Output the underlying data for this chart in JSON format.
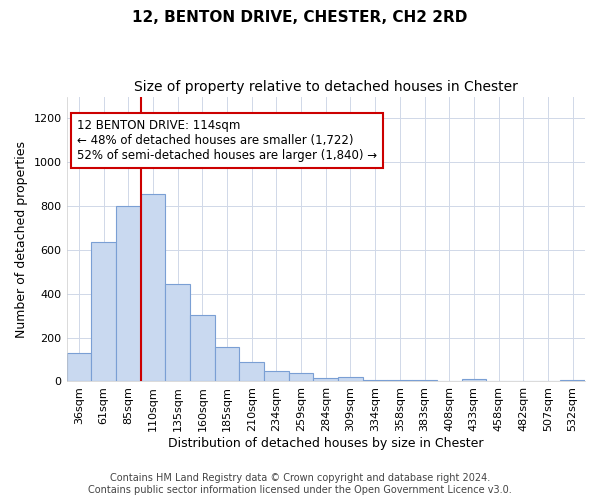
{
  "title_line1": "12, BENTON DRIVE, CHESTER, CH2 2RD",
  "title_line2": "Size of property relative to detached houses in Chester",
  "xlabel": "Distribution of detached houses by size in Chester",
  "ylabel": "Number of detached properties",
  "categories": [
    "36sqm",
    "61sqm",
    "85sqm",
    "110sqm",
    "135sqm",
    "160sqm",
    "185sqm",
    "210sqm",
    "234sqm",
    "259sqm",
    "284sqm",
    "309sqm",
    "334sqm",
    "358sqm",
    "383sqm",
    "408sqm",
    "433sqm",
    "458sqm",
    "482sqm",
    "507sqm",
    "532sqm"
  ],
  "values": [
    130,
    635,
    800,
    855,
    445,
    305,
    155,
    90,
    50,
    38,
    15,
    20,
    5,
    5,
    5,
    0,
    10,
    0,
    0,
    0,
    5
  ],
  "bar_color": "#c9d9f0",
  "bar_edge_color": "#7a9fd4",
  "vline_color": "#cc0000",
  "annotation_text": "12 BENTON DRIVE: 114sqm\n← 48% of detached houses are smaller (1,722)\n52% of semi-detached houses are larger (1,840) →",
  "annotation_box_color": "white",
  "annotation_box_edge": "#cc0000",
  "ylim": [
    0,
    1300
  ],
  "yticks": [
    0,
    200,
    400,
    600,
    800,
    1000,
    1200
  ],
  "grid_color": "#d0d8e8",
  "footnote": "Contains HM Land Registry data © Crown copyright and database right 2024.\nContains public sector information licensed under the Open Government Licence v3.0.",
  "title_fontsize": 11,
  "subtitle_fontsize": 10,
  "tick_fontsize": 8,
  "label_fontsize": 9,
  "annotation_fontsize": 8.5,
  "footnote_fontsize": 7
}
